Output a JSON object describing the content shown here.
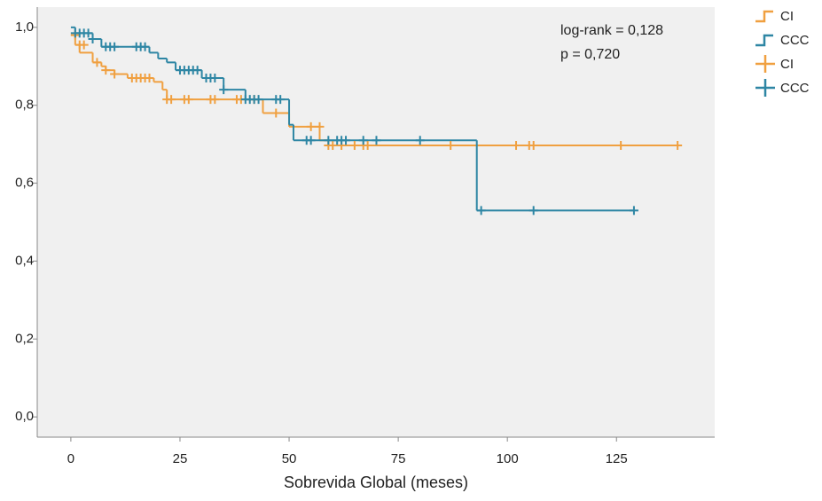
{
  "chart_data": {
    "type": "kaplan-meier",
    "xlabel": "Sobrevida Global (meses)",
    "annotations": [
      "log-rank = 0,128",
      "p = 0,720"
    ],
    "xlim": [
      -7.7,
      147.5
    ],
    "ylim": [
      -0.052,
      1.052
    ],
    "xticks": [
      0,
      25,
      50,
      75,
      100,
      125
    ],
    "yticks": [
      {
        "value": 0,
        "label": "0,0"
      },
      {
        "value": 0.2,
        "label": "0,2"
      },
      {
        "value": 0.4,
        "label": "0,4"
      },
      {
        "value": 0.6,
        "label": "0,6"
      },
      {
        "value": 0.8,
        "label": "0,8"
      },
      {
        "value": 1,
        "label": "1,0"
      }
    ],
    "series": [
      {
        "name": "CI",
        "style": "step",
        "color": "#f0a040",
        "x": [
          0,
          1,
          2,
          5,
          7,
          8,
          10,
          13,
          19,
          21,
          22,
          44,
          50,
          57,
          59,
          139
        ],
        "values": [
          0.98,
          0.955,
          0.935,
          0.91,
          0.9,
          0.89,
          0.88,
          0.87,
          0.86,
          0.84,
          0.815,
          0.78,
          0.745,
          0.71,
          0.697,
          0.697
        ]
      },
      {
        "name": "CCC",
        "style": "step",
        "color": "#2e86a4",
        "x": [
          0,
          1,
          5,
          7,
          18,
          20,
          22,
          24,
          30,
          35,
          40,
          50,
          51,
          93,
          129
        ],
        "values": [
          1.0,
          0.985,
          0.97,
          0.95,
          0.935,
          0.92,
          0.91,
          0.89,
          0.87,
          0.84,
          0.815,
          0.75,
          0.71,
          0.53,
          0.53
        ]
      },
      {
        "name": "CI",
        "style": "censor",
        "color": "#f0a040",
        "x": [
          1,
          2,
          3,
          6,
          8,
          10,
          14,
          15,
          16,
          17,
          18,
          22,
          23,
          26,
          27,
          32,
          33,
          38,
          39,
          42,
          47,
          55,
          57,
          59,
          60,
          62,
          65,
          67,
          68,
          87,
          102,
          105,
          106,
          126,
          139
        ],
        "values": [
          0.98,
          0.955,
          0.955,
          0.91,
          0.89,
          0.88,
          0.87,
          0.87,
          0.87,
          0.87,
          0.87,
          0.815,
          0.815,
          0.815,
          0.815,
          0.815,
          0.815,
          0.815,
          0.815,
          0.815,
          0.78,
          0.745,
          0.745,
          0.697,
          0.697,
          0.697,
          0.697,
          0.697,
          0.697,
          0.697,
          0.697,
          0.697,
          0.697,
          0.697,
          0.697
        ]
      },
      {
        "name": "CCC",
        "style": "censor",
        "color": "#2e86a4",
        "x": [
          1,
          2,
          3,
          4,
          5,
          8,
          9,
          10,
          15,
          16,
          17,
          25,
          26,
          27,
          28,
          29,
          31,
          32,
          33,
          35,
          40,
          41,
          42,
          43,
          47,
          48,
          54,
          55,
          59,
          61,
          62,
          63,
          67,
          70,
          80,
          94,
          106,
          129
        ],
        "values": [
          0.985,
          0.985,
          0.985,
          0.985,
          0.97,
          0.95,
          0.95,
          0.95,
          0.95,
          0.95,
          0.95,
          0.89,
          0.89,
          0.89,
          0.89,
          0.89,
          0.87,
          0.87,
          0.87,
          0.84,
          0.815,
          0.815,
          0.815,
          0.815,
          0.815,
          0.815,
          0.71,
          0.71,
          0.71,
          0.71,
          0.71,
          0.71,
          0.71,
          0.71,
          0.71,
          0.53,
          0.53,
          0.53
        ]
      }
    ]
  }
}
